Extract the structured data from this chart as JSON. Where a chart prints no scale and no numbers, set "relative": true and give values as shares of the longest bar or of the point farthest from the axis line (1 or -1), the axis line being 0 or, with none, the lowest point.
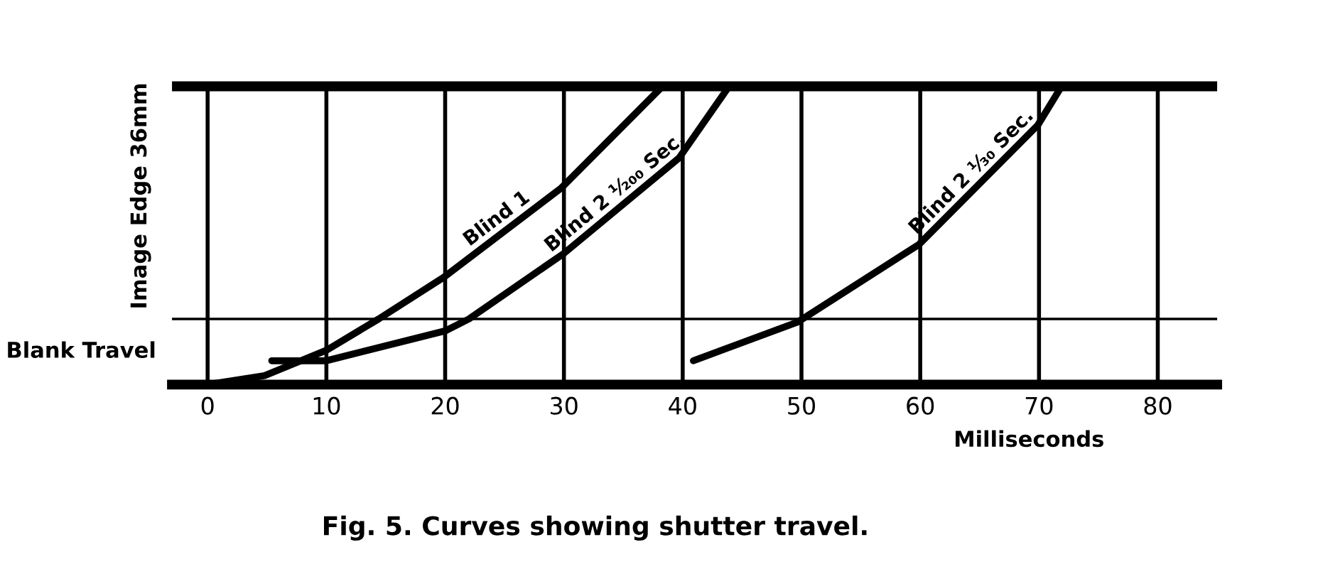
{
  "chart_data": {
    "type": "line",
    "title": "Fig. 5. Curves showing shutter travel.",
    "xlabel": "Milliseconds",
    "ylabel": "Image Edge 36mm",
    "relative": true,
    "xlim": [
      -3,
      85
    ],
    "xticks": [
      0,
      10,
      20,
      30,
      40,
      50,
      60,
      70,
      80
    ],
    "grid": "x",
    "tick_labels": "x",
    "line_style": "solid",
    "marker": "none",
    "ref_lines": [
      {
        "axis": "y",
        "value": 1,
        "label": null,
        "line_style": "solid"
      },
      {
        "axis": "y",
        "value": 0.22,
        "label": "Blank Travel",
        "line_style": "solid"
      }
    ],
    "series": [
      {
        "name": "Blind 1",
        "color": "#000000",
        "x": [
          0,
          4.8,
          10,
          14.4,
          19.9,
          29.8,
          38.3
        ],
        "values": [
          0,
          0.03,
          0.115,
          0.22,
          0.36,
          0.66,
          1.0
        ]
      },
      {
        "name": "Blind 2 ¹⁄₂₀₀ Sec.",
        "color": "#000000",
        "x": [
          5.4,
          10,
          20,
          22,
          30,
          39.7,
          43.9
        ],
        "values": [
          0.08,
          0.08,
          0.18,
          0.22,
          0.44,
          0.76,
          1.0
        ]
      },
      {
        "name": "Blind 2 ¹⁄₃₀ Sec.",
        "color": "#000000",
        "x": [
          40.9,
          49.7,
          59.9,
          69.9,
          71.9
        ],
        "values": [
          0.08,
          0.21,
          0.47,
          0.87,
          1.0
        ]
      }
    ]
  }
}
